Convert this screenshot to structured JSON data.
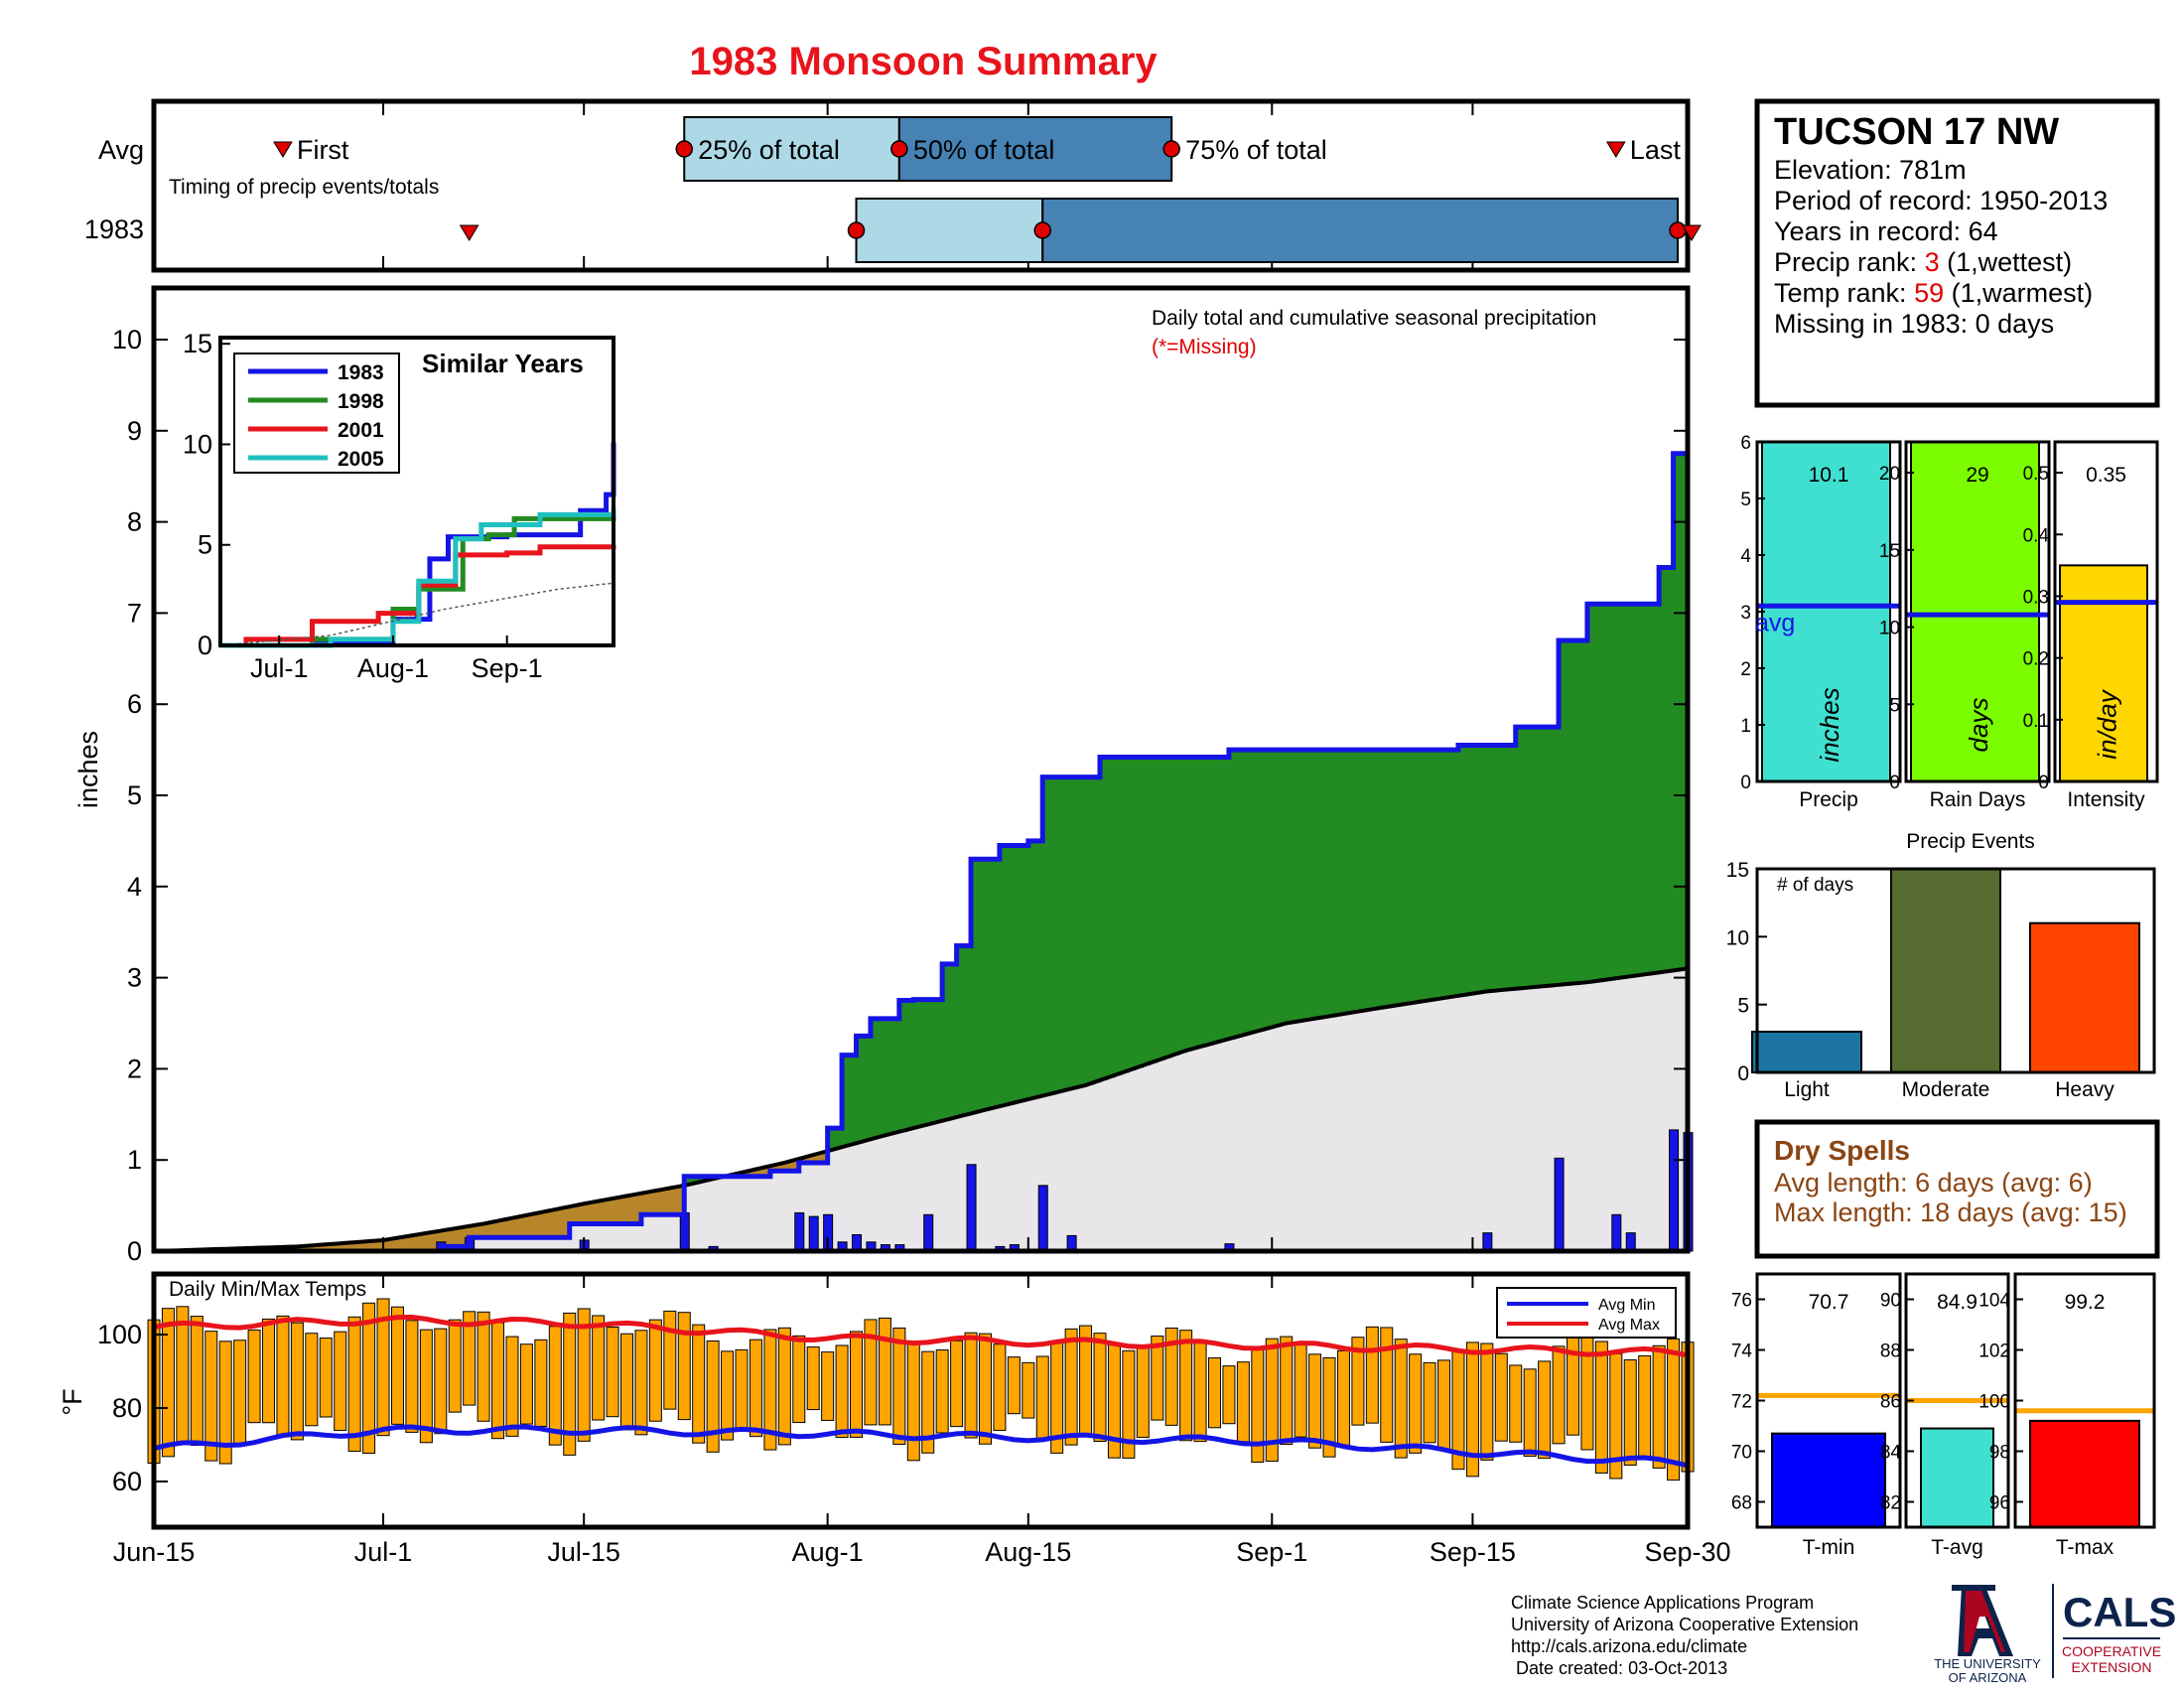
{
  "title": "1983 Monsoon Summary",
  "colors": {
    "title": "#e8141c",
    "obs_cumulative": "#1414e6",
    "above_avg_fill": "#228b22",
    "below_avg_fill": "#b8862a",
    "avg_fill": "#e8e6e8",
    "timing_light": "#add8e6",
    "timing_dark": "#4682b4",
    "marker": "#e00000",
    "temp_bar": "#ffa500",
    "avg_max": "#e8141c",
    "avg_min": "#1414e6",
    "dry_spells": "#8b4513",
    "precip_bar": "#40e0d0",
    "raindays_bar": "#7cfc00",
    "intensity_bar": "#ffd700",
    "light": "#1b75a0",
    "moderate": "#556b2f",
    "heavy": "#ff4500",
    "tmin_bar": "#0000ff",
    "tavg_bar": "#40e0d0",
    "tmax_bar": "#ff0000",
    "temp_avg_line": "#ffa500",
    "ua_logo": "#0c234b",
    "ua_red": "#ab0520"
  },
  "timing": {
    "rows": [
      "Avg",
      "1983"
    ],
    "caption": "Timing of precip events/totals",
    "labels": {
      "first": "First",
      "p25": "25% of total",
      "p50": "50% of total",
      "p75": "75% of total",
      "last": "Last"
    },
    "avg": {
      "first": "Jun-24",
      "p25": "Jul-22",
      "p50": "Aug-6",
      "p75": "Aug-25",
      "last": "Sep-25"
    },
    "year": {
      "first": "Jul-7",
      "p25": "Aug-3",
      "p50": "Aug-16",
      "p75": "Sep-30",
      "last": "Sep-30"
    }
  },
  "station": {
    "name": "TUCSON 17 NW",
    "lines": [
      {
        "text": "Elevation: 781m"
      },
      {
        "text": "Period of record: 1950-2013"
      },
      {
        "text": "Years in record: 64"
      },
      {
        "pre": "Precip rank: ",
        "red": "3",
        "post": " (1,wettest)"
      },
      {
        "pre": "Temp rank: ",
        "red": "59",
        "post": " (1,warmest)"
      },
      {
        "text": "Missing in 1983: 0 days"
      }
    ]
  },
  "main_chart": {
    "note": "Daily total and cumulative seasonal precipitation",
    "missing_note": "(*=Missing)",
    "ylabel": "inches",
    "y_ticks": [
      "0",
      "1",
      "2",
      "3",
      "4",
      "5",
      "6",
      "7",
      "8",
      "9",
      "10"
    ],
    "x_ticks": [
      "Jun-15",
      "Jul-1",
      "Jul-15",
      "Aug-1",
      "Aug-15",
      "Sep-1",
      "Sep-15",
      "Sep-30"
    ]
  },
  "inset": {
    "title": "Similar Years",
    "legend": [
      "1983",
      "1998",
      "2001",
      "2005"
    ],
    "y_ticks": [
      "0",
      "5",
      "10",
      "15"
    ],
    "x_ticks": [
      "Jul-1",
      "Aug-1",
      "Sep-1"
    ]
  },
  "temps": {
    "title": "Daily Min/Max Temps",
    "ylabel": "°F",
    "y_ticks": [
      "60",
      "80",
      "100"
    ],
    "legend": [
      "Avg Min",
      "Avg Max"
    ]
  },
  "summary_bars": [
    {
      "label": "Precip",
      "unit": "inches",
      "value": "10.1",
      "avg_label": "avg",
      "ticks": [
        "0",
        "1",
        "2",
        "3",
        "4",
        "5",
        "6"
      ]
    },
    {
      "label": "Rain Days",
      "unit": "days",
      "value": "29",
      "ticks": [
        "0",
        "5",
        "10",
        "15",
        "20"
      ]
    },
    {
      "label": "Intensity",
      "unit": "in/day",
      "value": "0.35",
      "ticks": [
        "0",
        "0.1",
        "0.2",
        "0.3",
        "0.4",
        "0.5"
      ]
    }
  ],
  "events": {
    "title": "Precip Events",
    "ylabel": "# of days",
    "ticks": [
      "0",
      "5",
      "10",
      "15"
    ],
    "categories": [
      "Light",
      "Moderate",
      "Heavy"
    ]
  },
  "dry_spells": {
    "title": "Dry Spells",
    "avg_line": "Avg length: 6 days (avg: 6)",
    "max_line": "Max length: 18 days (avg: 15)"
  },
  "temp_summary": [
    {
      "label": "T-min",
      "value": "70.7",
      "ticks": [
        "68",
        "70",
        "72",
        "74",
        "76"
      ]
    },
    {
      "label": "T-avg",
      "value": "84.9",
      "ticks": [
        "82",
        "84",
        "86",
        "88",
        "90"
      ]
    },
    {
      "label": "T-max",
      "value": "99.2",
      "ticks": [
        "96",
        "98",
        "100",
        "102",
        "104"
      ]
    }
  ],
  "footer": {
    "lines": [
      "Climate Science Applications Program",
      "University of Arizona Cooperative Extension",
      "http://cals.arizona.edu/climate",
      " Date created: 03-Oct-2013"
    ],
    "ua_lines": [
      "THE UNIVERSITY",
      "OF ARIZONA"
    ],
    "cals": "CALS",
    "cals_lines": [
      "COOPERATIVE",
      "EXTENSION"
    ]
  },
  "chart_data": [
    {
      "type": "area",
      "title": "Daily total and cumulative seasonal precipitation",
      "ylabel": "inches",
      "ylim": [
        0,
        10.5
      ],
      "xlim": [
        "Jun-15",
        "Sep-30"
      ],
      "series": [
        {
          "name": "1983 cumulative",
          "x": [
            "Jun-15",
            "Jul-1",
            "Jul-5",
            "Jul-7",
            "Jul-14",
            "Jul-19",
            "Jul-22",
            "Jul-28",
            "Jul-30",
            "Aug-1",
            "Aug-2",
            "Aug-3",
            "Aug-4",
            "Aug-6",
            "Aug-7",
            "Aug-9",
            "Aug-10",
            "Aug-11",
            "Aug-13",
            "Aug-15",
            "Aug-16",
            "Aug-20",
            "Aug-29",
            "Sep-14",
            "Sep-18",
            "Sep-21",
            "Sep-23",
            "Sep-28",
            "Sep-29",
            "Sep-30"
          ],
          "values": [
            0,
            0,
            0.05,
            0.15,
            0.3,
            0.4,
            0.82,
            0.88,
            0.97,
            1.35,
            2.15,
            2.36,
            2.55,
            2.75,
            2.76,
            3.15,
            3.35,
            4.3,
            4.45,
            4.5,
            5.2,
            5.42,
            5.5,
            5.55,
            5.75,
            6.7,
            7.1,
            7.5,
            8.75,
            10.1
          ]
        },
        {
          "name": "Average cumulative",
          "x": [
            "Jun-15",
            "Jun-25",
            "Jul-1",
            "Jul-8",
            "Jul-15",
            "Jul-22",
            "Jul-29",
            "Aug-5",
            "Aug-12",
            "Aug-19",
            "Aug-26",
            "Sep-2",
            "Sep-9",
            "Sep-16",
            "Sep-23",
            "Sep-30"
          ],
          "values": [
            0,
            0.05,
            0.12,
            0.3,
            0.52,
            0.72,
            0.97,
            1.27,
            1.55,
            1.82,
            2.2,
            2.5,
            2.68,
            2.85,
            2.95,
            3.1
          ]
        },
        {
          "name": "Daily precip",
          "x": [
            "Jul-5",
            "Jul-7",
            "Jul-15",
            "Jul-22",
            "Jul-24",
            "Jul-30",
            "Jul-31",
            "Aug-1",
            "Aug-2",
            "Aug-3",
            "Aug-4",
            "Aug-5",
            "Aug-6",
            "Aug-8",
            "Aug-11",
            "Aug-13",
            "Aug-14",
            "Aug-16",
            "Aug-18",
            "Aug-29",
            "Sep-16",
            "Sep-21",
            "Sep-25",
            "Sep-26",
            "Sep-29",
            "Sep-30"
          ],
          "values": [
            0.1,
            0.15,
            0.12,
            0.42,
            0.05,
            0.42,
            0.38,
            0.4,
            0.1,
            0.18,
            0.1,
            0.07,
            0.07,
            0.4,
            0.95,
            0.05,
            0.07,
            0.72,
            0.17,
            0.08,
            0.2,
            1.02,
            0.4,
            0.2,
            1.33,
            1.3
          ]
        }
      ]
    },
    {
      "type": "line",
      "title": "Similar Years",
      "ylim": [
        0,
        15
      ],
      "x_ticks": [
        "Jul-1",
        "Aug-1",
        "Sep-1"
      ],
      "series": [
        {
          "name": "1983",
          "x": [
            "Jun-15",
            "Jul-10",
            "Aug-1",
            "Aug-11",
            "Aug-16",
            "Sep-1",
            "Sep-21",
            "Sep-28",
            "Sep-30"
          ],
          "values": [
            0,
            0.2,
            1.3,
            4.3,
            5.4,
            5.5,
            6.7,
            7.5,
            10.1
          ]
        },
        {
          "name": "1998",
          "x": [
            "Jun-15",
            "Jul-10",
            "Aug-1",
            "Aug-8",
            "Aug-20",
            "Aug-27",
            "Sep-3",
            "Sep-30"
          ],
          "values": [
            0,
            0.3,
            1.8,
            2.8,
            5.3,
            5.5,
            6.3,
            6.6
          ]
        },
        {
          "name": "2001",
          "x": [
            "Jun-15",
            "Jun-22",
            "Jul-10",
            "Jul-28",
            "Aug-8",
            "Aug-18",
            "Sep-1",
            "Sep-10",
            "Sep-30"
          ],
          "values": [
            0,
            0.3,
            1.2,
            1.6,
            3.0,
            4.5,
            4.6,
            4.9,
            5.0
          ]
        },
        {
          "name": "2005",
          "x": [
            "Jun-15",
            "Jul-15",
            "Aug-1",
            "Aug-8",
            "Aug-18",
            "Aug-25",
            "Sep-10",
            "Sep-30"
          ],
          "values": [
            0,
            0.3,
            1.2,
            3.2,
            5.3,
            6.0,
            6.5,
            6.8
          ]
        },
        {
          "name": "Average",
          "x": [
            "Jun-15",
            "Jul-15",
            "Aug-15",
            "Sep-15",
            "Sep-30"
          ],
          "values": [
            0,
            0.5,
            1.8,
            2.8,
            3.1
          ]
        }
      ]
    },
    {
      "type": "bar",
      "title": "Daily Min/Max Temps",
      "ylabel": "°F",
      "ylim": [
        50,
        115
      ],
      "series": [
        {
          "name": "Avg Max",
          "x": [
            "Jun-15",
            "Jul-1",
            "Jul-15",
            "Aug-1",
            "Aug-15",
            "Sep-1",
            "Sep-15",
            "Sep-30"
          ],
          "values": [
            102,
            104,
            103,
            99,
            98,
            97,
            96,
            95
          ]
        },
        {
          "name": "Avg Min",
          "x": [
            "Jun-15",
            "Jul-1",
            "Jul-15",
            "Aug-1",
            "Aug-15",
            "Sep-1",
            "Sep-15",
            "Sep-30"
          ],
          "values": [
            69,
            74,
            74,
            73,
            72,
            71,
            68,
            65
          ]
        }
      ]
    },
    {
      "type": "bar",
      "title": "Precip Events",
      "categories": [
        "Light",
        "Moderate",
        "Heavy"
      ],
      "values": [
        3,
        15,
        11
      ],
      "ylim": [
        0,
        15
      ]
    },
    {
      "type": "bar",
      "categories": [
        "Precip",
        "Rain Days",
        "Intensity"
      ],
      "series": [
        {
          "name": "1983",
          "values": [
            10.1,
            29,
            0.35
          ]
        },
        {
          "name": "avg",
          "values": [
            3.1,
            10.8,
            0.29
          ]
        }
      ]
    },
    {
      "type": "bar",
      "categories": [
        "T-min",
        "T-avg",
        "T-max"
      ],
      "series": [
        {
          "name": "1983",
          "values": [
            70.7,
            84.9,
            99.2
          ]
        },
        {
          "name": "avg",
          "values": [
            72.2,
            86.0,
            99.6
          ]
        }
      ]
    }
  ]
}
